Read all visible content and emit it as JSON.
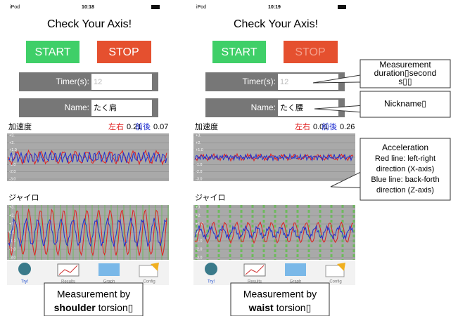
{
  "status": {
    "carrier": "iPod"
  },
  "app": {
    "title": "Check Your Axis!",
    "start_button": "START",
    "stop_button": "STOP",
    "timer_label": "Timer(s):",
    "timer_placeholder": "12",
    "name_label": "Name:",
    "accel_label": "加速度",
    "left_right_label": "左右",
    "front_back_label": "前後",
    "gyro_label": "ジャイロ",
    "graph_ticks": [
      "+3.",
      "+2.",
      "+1.0",
      "0.0",
      "-1.0",
      "-2.0",
      "-3.0"
    ],
    "tabs": [
      "Try!",
      "Results",
      "Graph",
      "Config"
    ]
  },
  "screens": [
    {
      "time": "10:18",
      "name_value": "たく肩",
      "left_right_value": "0.21",
      "front_back_value": "0.07",
      "caption": {
        "line1": "Measurement by",
        "emphasis": "shoulder",
        "suffix": " torsion▯"
      }
    },
    {
      "time": "10:19",
      "name_value": "たく腰",
      "left_right_value": "0.01",
      "front_back_value": "0.26",
      "caption": {
        "line1": "Measurement by",
        "emphasis": "waist",
        "suffix": " torsion▯"
      }
    }
  ],
  "callouts": [
    {
      "lines": [
        "Measurement",
        "duration▯second",
        "s▯▯"
      ]
    },
    {
      "lines": [
        "Nickname▯"
      ]
    },
    {
      "lines": [
        "Acceleration",
        "Red line: left-right",
        "direction (X-axis)",
        "Blue line: back-forth",
        "direction (Z-axis)"
      ]
    }
  ]
}
